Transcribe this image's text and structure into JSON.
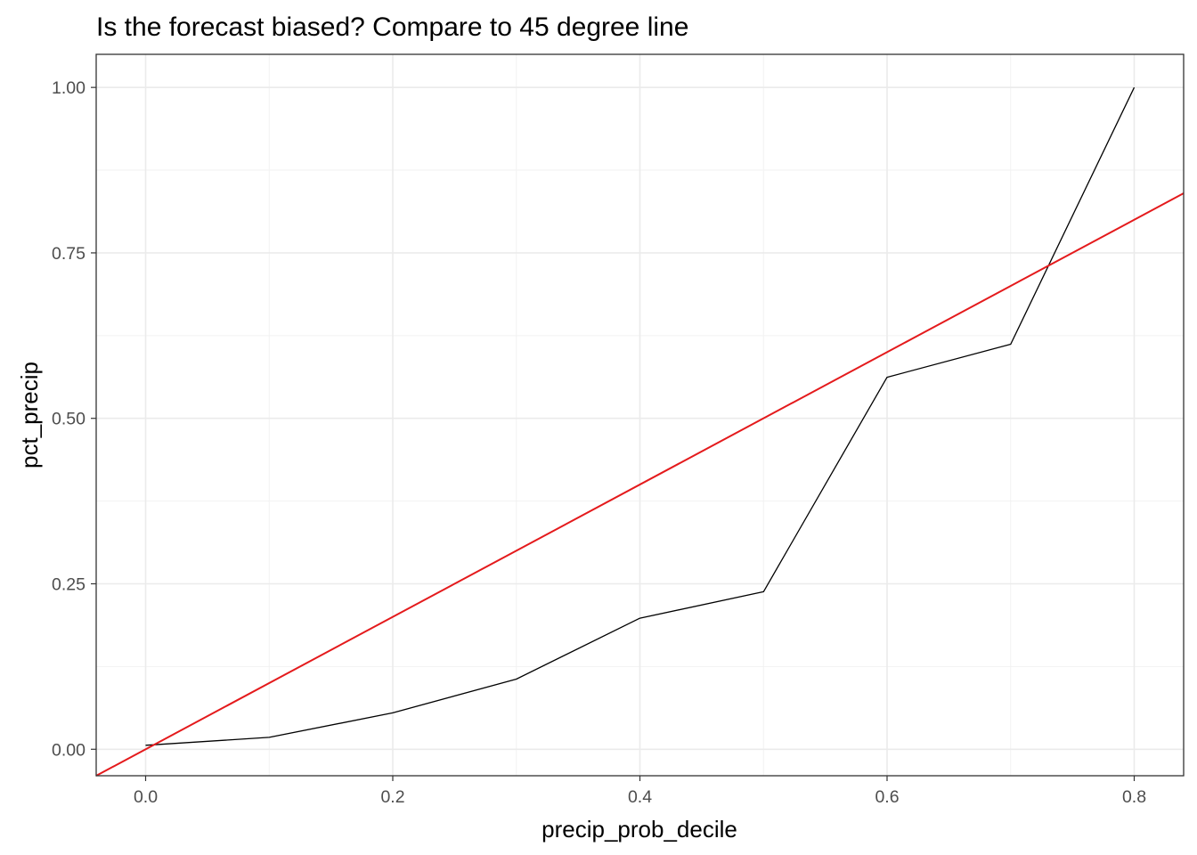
{
  "chart_data": {
    "type": "line",
    "title": "Is the forecast biased? Compare to 45 degree line",
    "xlabel": "precip_prob_decile",
    "ylabel": "pct_precip",
    "xlim": [
      -0.04,
      0.84
    ],
    "ylim": [
      -0.04,
      1.05
    ],
    "x_ticks": [
      0.0,
      0.2,
      0.4,
      0.6,
      0.8
    ],
    "x_tick_labels": [
      "0.0",
      "0.2",
      "0.4",
      "0.6",
      "0.8"
    ],
    "y_ticks": [
      0.0,
      0.25,
      0.5,
      0.75,
      1.0
    ],
    "y_tick_labels": [
      "0.00",
      "0.25",
      "0.50",
      "0.75",
      "1.00"
    ],
    "grid": true,
    "series": [
      {
        "color": "#000000",
        "x": [
          0.0,
          0.1,
          0.2,
          0.3,
          0.4,
          0.5,
          0.6,
          0.7,
          0.8
        ],
        "y": [
          0.006,
          0.018,
          0.055,
          0.106,
          0.198,
          0.238,
          0.562,
          0.612,
          1.0
        ]
      }
    ],
    "reference_line": {
      "slope": 1,
      "intercept": 0,
      "color": "#e41a1c"
    }
  }
}
